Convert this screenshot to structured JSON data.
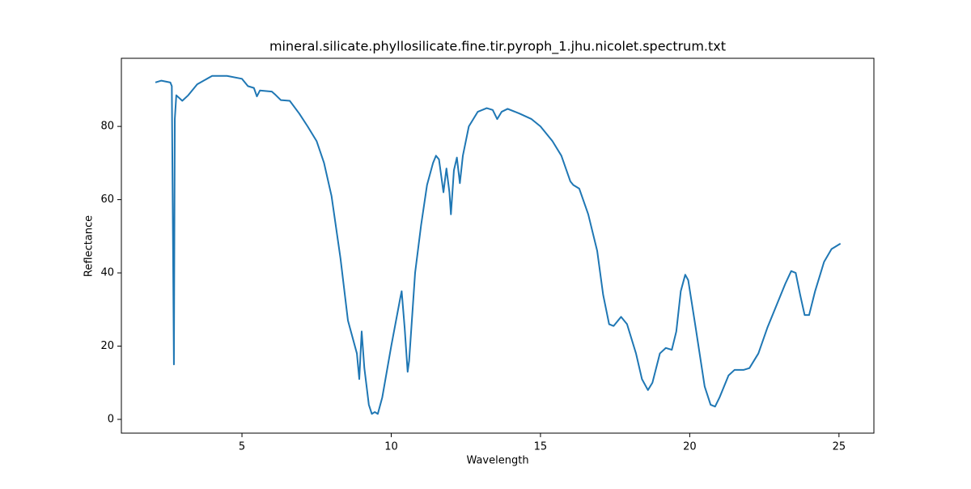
{
  "chart_data": {
    "type": "line",
    "title": "mineral.silicate.phyllosilicate.fine.tir.pyroph_1.jhu.nicolet.spectrum.txt",
    "x_label": "Wavelength",
    "y_label": "Reflectance",
    "xlim": [
      0.96,
      26.17
    ],
    "ylim": [
      -3.76,
      98.6
    ],
    "xticks": [
      5,
      10,
      15,
      20,
      25
    ],
    "yticks": [
      0,
      20,
      40,
      60,
      80
    ],
    "series": [
      {
        "color": "#1f77b4",
        "x": [
          2.1,
          2.3,
          2.6,
          2.65,
          2.72,
          2.75,
          2.8,
          3.0,
          3.2,
          3.5,
          4.0,
          4.5,
          5.0,
          5.2,
          5.4,
          5.5,
          5.6,
          6.0,
          6.1,
          6.3,
          6.6,
          6.92,
          7.2,
          7.5,
          7.75,
          8.0,
          8.3,
          8.55,
          8.85,
          8.93,
          9.01,
          9.1,
          9.25,
          9.35,
          9.45,
          9.55,
          9.7,
          10.0,
          10.3,
          10.35,
          10.45,
          10.55,
          10.6,
          10.8,
          11.0,
          11.2,
          11.4,
          11.5,
          11.6,
          11.75,
          11.85,
          11.95,
          12.0,
          12.1,
          12.2,
          12.3,
          12.4,
          12.6,
          12.9,
          13.2,
          13.4,
          13.55,
          13.7,
          13.9,
          14.3,
          14.7,
          15.0,
          15.4,
          15.7,
          16.0,
          16.1,
          16.3,
          16.6,
          16.9,
          17.1,
          17.3,
          17.45,
          17.7,
          17.9,
          18.2,
          18.4,
          18.6,
          18.75,
          19.0,
          19.2,
          19.4,
          19.55,
          19.7,
          19.85,
          19.95,
          20.2,
          20.5,
          20.7,
          20.85,
          21.0,
          21.3,
          21.5,
          21.8,
          22.0,
          22.3,
          22.6,
          22.9,
          23.2,
          23.4,
          23.55,
          23.7,
          23.85,
          24.0,
          24.2,
          24.5,
          24.75,
          25.05
        ],
        "values": [
          92,
          92.5,
          92,
          91,
          15,
          82,
          88.5,
          87,
          88.5,
          91.5,
          93.8,
          93.8,
          93,
          91,
          90.5,
          88.2,
          89.8,
          89.5,
          88.8,
          87.2,
          87,
          83.5,
          80,
          76,
          70,
          61,
          44,
          27,
          18,
          11,
          24,
          14,
          4,
          1.5,
          2,
          1.5,
          6,
          20,
          33,
          35,
          25,
          13,
          16,
          40,
          53,
          64,
          70,
          72,
          71,
          62,
          68.5,
          62,
          56,
          68,
          71.5,
          64.5,
          72,
          80,
          84,
          85,
          84.5,
          82,
          84,
          84.8,
          83.5,
          82,
          80,
          76,
          72,
          65,
          64,
          63,
          56,
          46,
          34,
          26,
          25.5,
          28,
          26,
          18,
          11,
          8,
          10,
          18,
          19.5,
          19,
          24,
          35,
          39.5,
          38,
          25,
          9,
          4,
          3.5,
          6,
          12,
          13.5,
          13.5,
          14,
          18,
          25,
          31,
          37,
          40.5,
          40,
          34,
          28.5,
          28.5,
          35,
          43,
          46.5,
          48
        ]
      }
    ]
  }
}
